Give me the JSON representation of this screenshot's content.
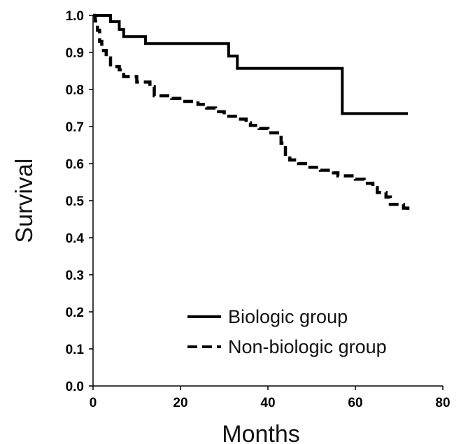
{
  "chart_data": {
    "type": "line",
    "title": "",
    "xlabel": "Months",
    "ylabel": "Survival",
    "xlim": [
      0,
      80
    ],
    "ylim": [
      0.0,
      1.0
    ],
    "x_ticks": [
      0,
      20,
      40,
      60,
      80
    ],
    "x_tick_labels": [
      "0",
      "20",
      "40",
      "60",
      "80"
    ],
    "y_ticks": [
      0.0,
      0.1,
      0.2,
      0.3,
      0.4,
      0.5,
      0.6,
      0.7,
      0.8,
      0.9,
      1.0
    ],
    "y_tick_labels": [
      "0.0",
      "0.1",
      "0.2",
      "0.3",
      "0.4",
      "0.5",
      "0.6",
      "0.7",
      "0.8",
      "0.9",
      "1.0"
    ],
    "grid": false,
    "legend_position": "bottom-right",
    "series": [
      {
        "name": "Biologic group",
        "style": "solid",
        "color": "#000000",
        "x": [
          0,
          4,
          6,
          7,
          12,
          31,
          33,
          57,
          72
        ],
        "y": [
          1.0,
          0.983,
          0.962,
          0.943,
          0.924,
          0.89,
          0.857,
          0.735,
          0.735
        ]
      },
      {
        "name": "Non-biologic group",
        "style": "dashed",
        "color": "#000000",
        "x": [
          0,
          0.5,
          1,
          1.5,
          2,
          3,
          4,
          6,
          7,
          10,
          13,
          14,
          18,
          21,
          24,
          26,
          28,
          30,
          33,
          35,
          36,
          38,
          40,
          43,
          44,
          45,
          47,
          49,
          52,
          55,
          56,
          60,
          62,
          64,
          65,
          67,
          68,
          71,
          72
        ],
        "y": [
          1.0,
          0.985,
          0.96,
          0.93,
          0.905,
          0.885,
          0.862,
          0.853,
          0.835,
          0.82,
          0.807,
          0.783,
          0.776,
          0.768,
          0.76,
          0.75,
          0.74,
          0.728,
          0.72,
          0.71,
          0.703,
          0.695,
          0.683,
          0.655,
          0.62,
          0.61,
          0.6,
          0.59,
          0.582,
          0.575,
          0.567,
          0.558,
          0.547,
          0.535,
          0.522,
          0.51,
          0.49,
          0.48,
          0.465
        ]
      }
    ]
  }
}
